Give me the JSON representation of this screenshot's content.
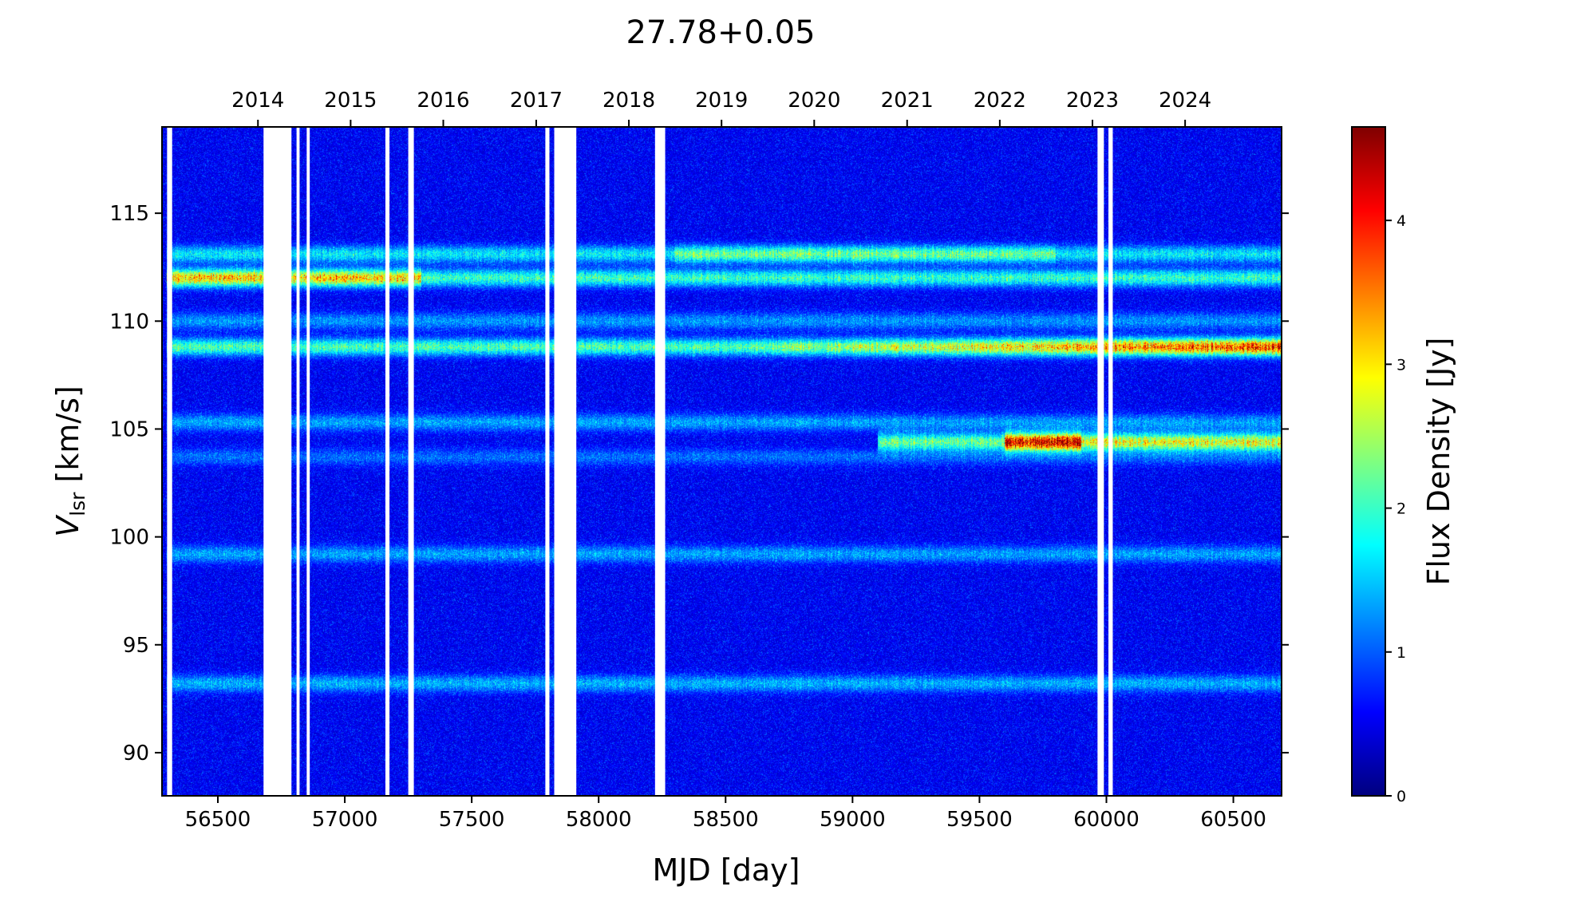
{
  "chart_data": {
    "type": "heatmap",
    "title": "27.78+0.05",
    "xlabel": "MJD [day]",
    "ylabel_main": "V",
    "ylabel_sub": "lsr",
    "ylabel_unit": " [km/s]",
    "xlim": [
      56280,
      60690
    ],
    "ylim": [
      88,
      119
    ],
    "x_ticks": [
      56500,
      57000,
      57500,
      58000,
      58500,
      59000,
      59500,
      60000,
      60500
    ],
    "y_ticks": [
      90,
      95,
      100,
      105,
      110,
      115
    ],
    "top_axis_years": [
      "2014",
      "2015",
      "2016",
      "2017",
      "2018",
      "2019",
      "2020",
      "2021",
      "2022",
      "2023",
      "2024"
    ],
    "top_axis_mjd": [
      56658,
      57023,
      57388,
      57754,
      58119,
      58484,
      58849,
      59215,
      59580,
      59945,
      60310
    ],
    "colorbar": {
      "label": "Flux Density [Jy]",
      "colormap": "jet",
      "range": [
        0,
        4.65
      ],
      "ticks": [
        0,
        1,
        2,
        3,
        4
      ]
    },
    "data_gaps_mjd": [
      [
        56300,
        56320
      ],
      [
        56680,
        56790
      ],
      [
        56810,
        56822
      ],
      [
        56850,
        56862
      ],
      [
        57160,
        57176
      ],
      [
        57250,
        57272
      ],
      [
        57790,
        57806
      ],
      [
        57825,
        57912
      ],
      [
        58222,
        58262
      ],
      [
        59965,
        59990
      ],
      [
        60008,
        60025
      ]
    ],
    "features": [
      {
        "vlsr": 113.1,
        "peak_jy": 2.0,
        "mjd_range": [
          56300,
          60690
        ]
      },
      {
        "vlsr": 112.0,
        "peak_jy": 3.0,
        "mjd_range": [
          56300,
          60690
        ]
      },
      {
        "vlsr": 110.0,
        "peak_jy": 1.1,
        "mjd_range": [
          56300,
          60690
        ]
      },
      {
        "vlsr": 108.8,
        "peak_jy": 3.9,
        "mjd_range": [
          56300,
          60690
        ]
      },
      {
        "vlsr": 105.3,
        "peak_jy": 1.2,
        "mjd_range": [
          56300,
          60690
        ]
      },
      {
        "vlsr": 104.4,
        "peak_jy": 4.4,
        "mjd_range": [
          59100,
          60690
        ]
      },
      {
        "vlsr": 103.7,
        "peak_jy": 0.8,
        "mjd_range": [
          56300,
          60690
        ]
      },
      {
        "vlsr": 99.2,
        "peak_jy": 1.2,
        "mjd_range": [
          56300,
          60690
        ]
      },
      {
        "vlsr": 93.2,
        "peak_jy": 1.3,
        "mjd_range": [
          56300,
          60690
        ]
      }
    ]
  }
}
